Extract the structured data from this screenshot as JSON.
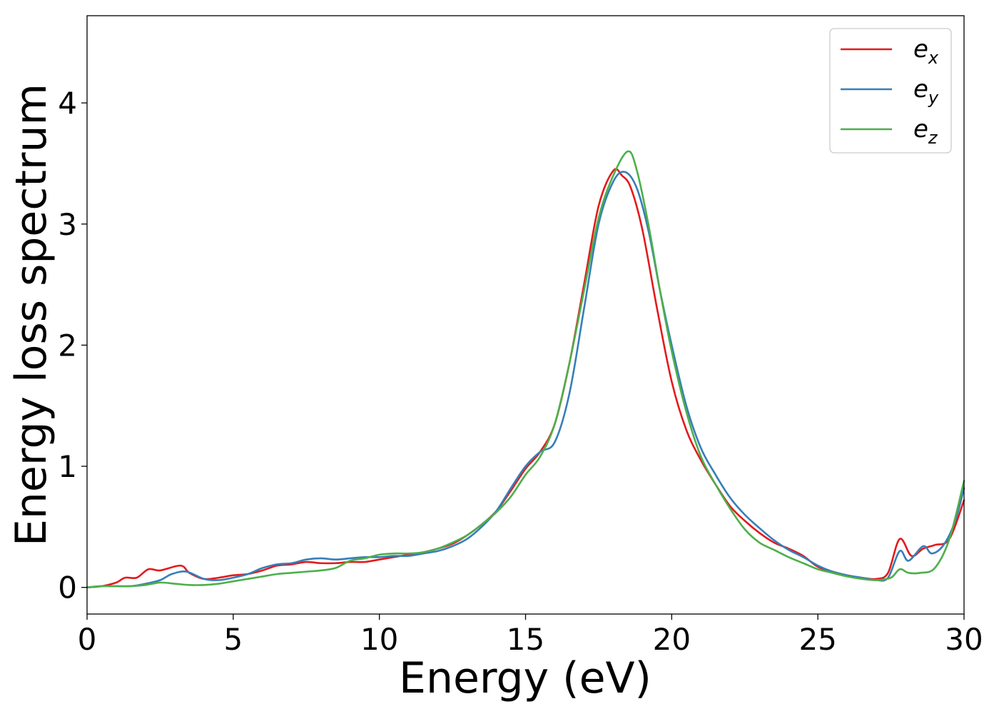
{
  "chart_data": {
    "type": "line",
    "xlabel": "Energy (eV)",
    "ylabel": "Energy loss spectrum",
    "xlim": [
      0,
      30
    ],
    "ylim": [
      -0.22,
      4.72
    ],
    "xticks": [
      0,
      5,
      10,
      15,
      20,
      25,
      30
    ],
    "xtick_labels": [
      "0",
      "5",
      "10",
      "15",
      "20",
      "25",
      "30"
    ],
    "yticks": [
      0,
      1,
      2,
      3,
      4
    ],
    "ytick_labels": [
      "0",
      "1",
      "2",
      "3",
      "4"
    ],
    "grid": false,
    "legend_position": "top-right",
    "series": [
      {
        "name": "e_x",
        "label_base": "e",
        "label_sub": "x",
        "color": "#e41a1c",
        "points": [
          [
            0,
            0.0
          ],
          [
            0.5,
            0.01
          ],
          [
            1.0,
            0.04
          ],
          [
            1.3,
            0.08
          ],
          [
            1.7,
            0.08
          ],
          [
            2.1,
            0.15
          ],
          [
            2.5,
            0.14
          ],
          [
            3.2,
            0.18
          ],
          [
            3.5,
            0.12
          ],
          [
            4.0,
            0.07
          ],
          [
            4.5,
            0.08
          ],
          [
            5.0,
            0.1
          ],
          [
            5.5,
            0.11
          ],
          [
            6.0,
            0.14
          ],
          [
            6.5,
            0.18
          ],
          [
            7.0,
            0.19
          ],
          [
            7.5,
            0.21
          ],
          [
            8.0,
            0.2
          ],
          [
            8.5,
            0.2
          ],
          [
            9.0,
            0.21
          ],
          [
            9.5,
            0.21
          ],
          [
            10.0,
            0.23
          ],
          [
            10.5,
            0.25
          ],
          [
            11.0,
            0.27
          ],
          [
            11.5,
            0.29
          ],
          [
            12.0,
            0.32
          ],
          [
            12.5,
            0.36
          ],
          [
            13.0,
            0.43
          ],
          [
            13.5,
            0.52
          ],
          [
            14.0,
            0.63
          ],
          [
            14.5,
            0.8
          ],
          [
            15.0,
            0.98
          ],
          [
            15.5,
            1.12
          ],
          [
            16.0,
            1.35
          ],
          [
            16.5,
            1.85
          ],
          [
            17.0,
            2.5
          ],
          [
            17.5,
            3.15
          ],
          [
            18.0,
            3.44
          ],
          [
            18.3,
            3.4
          ],
          [
            18.6,
            3.3
          ],
          [
            19.0,
            2.95
          ],
          [
            19.5,
            2.3
          ],
          [
            20.0,
            1.7
          ],
          [
            20.5,
            1.3
          ],
          [
            21.0,
            1.05
          ],
          [
            21.5,
            0.85
          ],
          [
            22.0,
            0.67
          ],
          [
            22.5,
            0.55
          ],
          [
            23.0,
            0.45
          ],
          [
            23.5,
            0.37
          ],
          [
            24.0,
            0.32
          ],
          [
            24.5,
            0.26
          ],
          [
            25.0,
            0.17
          ],
          [
            25.5,
            0.13
          ],
          [
            26.0,
            0.1
          ],
          [
            26.5,
            0.08
          ],
          [
            27.0,
            0.07
          ],
          [
            27.4,
            0.12
          ],
          [
            27.8,
            0.4
          ],
          [
            28.2,
            0.26
          ],
          [
            28.6,
            0.32
          ],
          [
            29.0,
            0.35
          ],
          [
            29.5,
            0.4
          ],
          [
            30.0,
            0.72
          ]
        ]
      },
      {
        "name": "e_y",
        "label_base": "e",
        "label_sub": "y",
        "color": "#377eb8",
        "points": [
          [
            0,
            0.0
          ],
          [
            0.5,
            0.01
          ],
          [
            1.0,
            0.01
          ],
          [
            1.5,
            0.01
          ],
          [
            2.0,
            0.03
          ],
          [
            2.5,
            0.06
          ],
          [
            2.9,
            0.11
          ],
          [
            3.4,
            0.13
          ],
          [
            4.0,
            0.07
          ],
          [
            4.5,
            0.06
          ],
          [
            5.0,
            0.08
          ],
          [
            5.5,
            0.11
          ],
          [
            6.0,
            0.16
          ],
          [
            6.5,
            0.19
          ],
          [
            7.0,
            0.2
          ],
          [
            7.5,
            0.23
          ],
          [
            8.0,
            0.24
          ],
          [
            8.5,
            0.23
          ],
          [
            9.0,
            0.24
          ],
          [
            9.5,
            0.25
          ],
          [
            10.0,
            0.25
          ],
          [
            10.5,
            0.26
          ],
          [
            11.0,
            0.26
          ],
          [
            11.5,
            0.28
          ],
          [
            12.0,
            0.3
          ],
          [
            12.5,
            0.34
          ],
          [
            13.0,
            0.4
          ],
          [
            13.5,
            0.5
          ],
          [
            14.0,
            0.63
          ],
          [
            14.5,
            0.82
          ],
          [
            15.0,
            1.0
          ],
          [
            15.5,
            1.12
          ],
          [
            16.0,
            1.2
          ],
          [
            16.5,
            1.6
          ],
          [
            17.0,
            2.3
          ],
          [
            17.5,
            3.0
          ],
          [
            18.0,
            3.35
          ],
          [
            18.4,
            3.43
          ],
          [
            18.8,
            3.3
          ],
          [
            19.2,
            2.95
          ],
          [
            19.6,
            2.45
          ],
          [
            20.0,
            2.0
          ],
          [
            20.5,
            1.5
          ],
          [
            21.0,
            1.15
          ],
          [
            21.5,
            0.93
          ],
          [
            22.0,
            0.74
          ],
          [
            22.5,
            0.6
          ],
          [
            23.0,
            0.49
          ],
          [
            23.5,
            0.39
          ],
          [
            24.0,
            0.31
          ],
          [
            24.5,
            0.25
          ],
          [
            25.0,
            0.18
          ],
          [
            25.5,
            0.13
          ],
          [
            26.0,
            0.1
          ],
          [
            26.5,
            0.08
          ],
          [
            27.0,
            0.06
          ],
          [
            27.4,
            0.08
          ],
          [
            27.8,
            0.3
          ],
          [
            28.1,
            0.22
          ],
          [
            28.6,
            0.34
          ],
          [
            28.9,
            0.28
          ],
          [
            29.3,
            0.35
          ],
          [
            29.7,
            0.55
          ],
          [
            30.0,
            0.82
          ]
        ]
      },
      {
        "name": "e_z",
        "label_base": "e",
        "label_sub": "z",
        "color": "#4daf4a",
        "points": [
          [
            0,
            0.0
          ],
          [
            0.5,
            0.01
          ],
          [
            1.0,
            0.01
          ],
          [
            1.5,
            0.01
          ],
          [
            2.0,
            0.02
          ],
          [
            2.5,
            0.04
          ],
          [
            3.0,
            0.03
          ],
          [
            3.5,
            0.02
          ],
          [
            4.0,
            0.02
          ],
          [
            4.5,
            0.03
          ],
          [
            5.0,
            0.05
          ],
          [
            5.5,
            0.07
          ],
          [
            6.0,
            0.09
          ],
          [
            6.5,
            0.11
          ],
          [
            7.0,
            0.12
          ],
          [
            7.5,
            0.13
          ],
          [
            8.0,
            0.14
          ],
          [
            8.5,
            0.16
          ],
          [
            9.0,
            0.22
          ],
          [
            9.5,
            0.24
          ],
          [
            10.0,
            0.27
          ],
          [
            10.5,
            0.28
          ],
          [
            11.0,
            0.28
          ],
          [
            11.5,
            0.29
          ],
          [
            12.0,
            0.32
          ],
          [
            12.5,
            0.37
          ],
          [
            13.0,
            0.43
          ],
          [
            13.5,
            0.52
          ],
          [
            14.0,
            0.62
          ],
          [
            14.5,
            0.75
          ],
          [
            15.0,
            0.93
          ],
          [
            15.5,
            1.08
          ],
          [
            16.0,
            1.35
          ],
          [
            16.5,
            1.85
          ],
          [
            17.0,
            2.45
          ],
          [
            17.5,
            3.05
          ],
          [
            18.0,
            3.4
          ],
          [
            18.5,
            3.6
          ],
          [
            18.8,
            3.45
          ],
          [
            19.2,
            3.0
          ],
          [
            19.6,
            2.45
          ],
          [
            20.0,
            1.95
          ],
          [
            20.5,
            1.45
          ],
          [
            21.0,
            1.08
          ],
          [
            21.5,
            0.85
          ],
          [
            22.0,
            0.65
          ],
          [
            22.5,
            0.48
          ],
          [
            23.0,
            0.37
          ],
          [
            23.5,
            0.31
          ],
          [
            24.0,
            0.25
          ],
          [
            24.5,
            0.2
          ],
          [
            25.0,
            0.15
          ],
          [
            25.5,
            0.12
          ],
          [
            26.0,
            0.09
          ],
          [
            26.5,
            0.07
          ],
          [
            27.0,
            0.06
          ],
          [
            27.5,
            0.08
          ],
          [
            27.8,
            0.15
          ],
          [
            28.1,
            0.12
          ],
          [
            28.5,
            0.12
          ],
          [
            29.0,
            0.16
          ],
          [
            29.5,
            0.4
          ],
          [
            30.0,
            0.88
          ]
        ]
      }
    ]
  }
}
